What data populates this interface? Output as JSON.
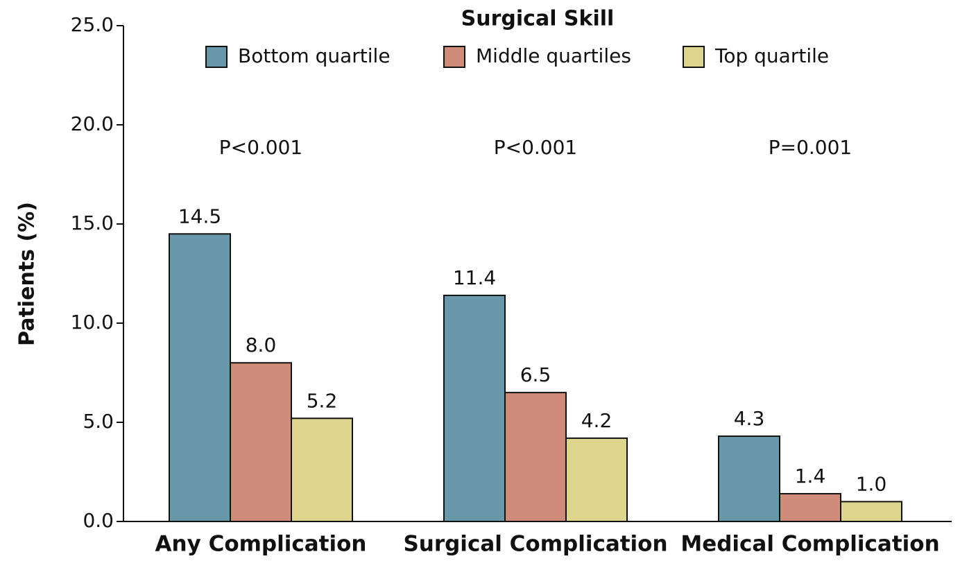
{
  "chart_data": {
    "type": "bar",
    "legend_title": "Surgical Skill",
    "y_label": "Patients (%)",
    "categories": [
      "Any Complication",
      "Surgical Complication",
      "Medical Complication"
    ],
    "annotations": [
      "P<0.001",
      "P<0.001",
      "P=0.001"
    ],
    "series": [
      {
        "name": "Bottom quartile",
        "color": "#6a98ab",
        "values": [
          14.5,
          11.4,
          4.3
        ],
        "value_labels": [
          "14.5",
          "11.4",
          "4.3"
        ]
      },
      {
        "name": "Middle quartiles",
        "color": "#cf8c7a",
        "values": [
          8,
          6.5,
          1.4
        ],
        "value_labels": [
          "8.0",
          "6.5",
          "1.4"
        ]
      },
      {
        "name": "Top quartile",
        "color": "#ddd58e",
        "values": [
          5.2,
          4.2,
          1
        ],
        "value_labels": [
          "5.2",
          "4.2",
          "1.0"
        ]
      }
    ],
    "ylim": [
      0,
      25
    ],
    "yticks": [
      {
        "value": 0,
        "label": "0.0"
      },
      {
        "value": 5,
        "label": "5.0"
      },
      {
        "value": 10,
        "label": "10.0"
      },
      {
        "value": 15,
        "label": "15.0"
      },
      {
        "value": 20,
        "label": "20.0"
      },
      {
        "value": 25,
        "label": "25.0"
      }
    ],
    "grid": false
  }
}
